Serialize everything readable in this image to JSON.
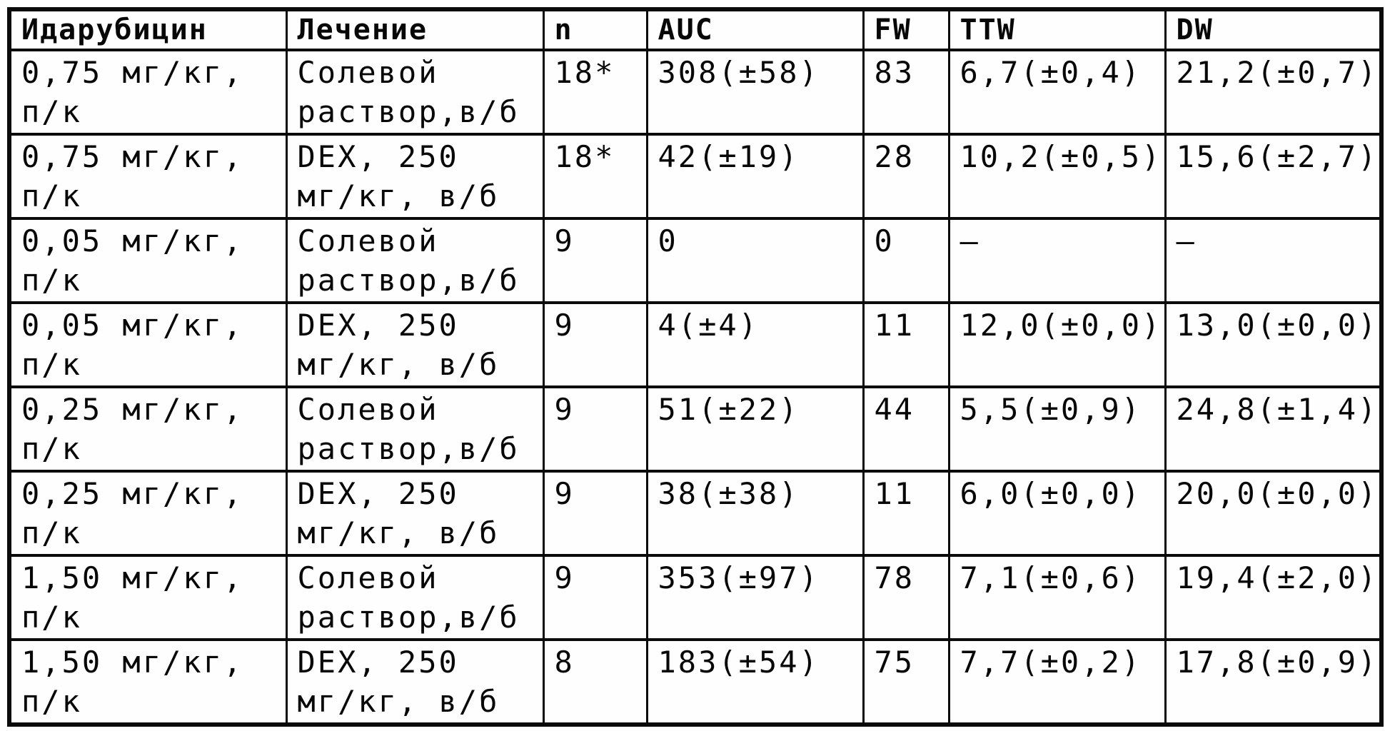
{
  "page": {
    "background_color": "#fefefe",
    "text_color": "#070707",
    "border_color": "#0a0a0a"
  },
  "table": {
    "header": [
      "Идарубицин",
      "Лечение",
      "n",
      "AUC",
      "FW",
      "TTW",
      "DW"
    ],
    "rows": [
      {
        "cells": [
          [
            "0,75 мг/кг,",
            "п/к"
          ],
          [
            "Солевой",
            "раствор,в/б"
          ],
          [
            "18*"
          ],
          [
            "308(±58)"
          ],
          [
            "83"
          ],
          [
            "6,7(±0,4)"
          ],
          [
            "21,2(±0,7)"
          ]
        ]
      },
      {
        "cells": [
          [
            "0,75 мг/кг,",
            "п/к"
          ],
          [
            "DEX, 250",
            "мг/кг, в/б"
          ],
          [
            "18*"
          ],
          [
            "42(±19)"
          ],
          [
            "28"
          ],
          [
            "10,2(±0,5)"
          ],
          [
            "15,6(±2,7)"
          ]
        ]
      },
      {
        "cells": [
          [
            "0,05 мг/кг,",
            "п/к"
          ],
          [
            "Солевой",
            "раствор,в/б"
          ],
          [
            "9"
          ],
          [
            "0"
          ],
          [
            "0"
          ],
          [
            "–"
          ],
          [
            "–"
          ]
        ]
      },
      {
        "cells": [
          [
            "0,05 мг/кг,",
            "п/к"
          ],
          [
            "DEX, 250",
            "мг/кг, в/б"
          ],
          [
            "9"
          ],
          [
            "4(±4)"
          ],
          [
            "11"
          ],
          [
            "12,0(±0,0)"
          ],
          [
            "13,0(±0,0)"
          ]
        ]
      },
      {
        "cells": [
          [
            "0,25 мг/кг,",
            "п/к"
          ],
          [
            "Солевой",
            "раствор,в/б"
          ],
          [
            "9"
          ],
          [
            "51(±22)"
          ],
          [
            "44"
          ],
          [
            "5,5(±0,9)"
          ],
          [
            "24,8(±1,4)"
          ]
        ]
      },
      {
        "cells": [
          [
            "0,25 мг/кг,",
            "п/к"
          ],
          [
            "DEX, 250",
            "мг/кг, в/б"
          ],
          [
            "9"
          ],
          [
            "38(±38)"
          ],
          [
            "11"
          ],
          [
            "6,0(±0,0)"
          ],
          [
            "20,0(±0,0)"
          ]
        ]
      },
      {
        "cells": [
          [
            "1,50 мг/кг,",
            "п/к"
          ],
          [
            "Солевой",
            "раствор,в/б"
          ],
          [
            "9"
          ],
          [
            "353(±97)"
          ],
          [
            "78"
          ],
          [
            "7,1(±0,6)"
          ],
          [
            "19,4(±2,0)"
          ]
        ]
      },
      {
        "cells": [
          [
            "1,50 мг/кг,",
            "п/к"
          ],
          [
            "DEX, 250",
            "мг/кг, в/б"
          ],
          [
            "8"
          ],
          [
            "183(±54)"
          ],
          [
            "75"
          ],
          [
            "7,7(±0,2)"
          ],
          [
            "17,8(±0,9)"
          ]
        ]
      }
    ]
  }
}
